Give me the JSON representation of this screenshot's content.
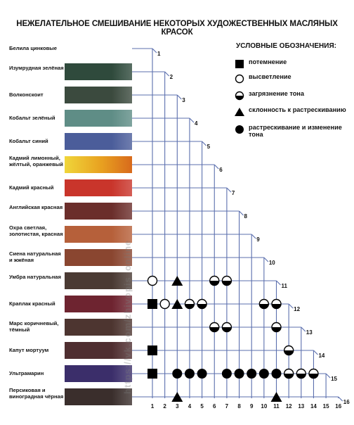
{
  "title": "НЕЖЕЛАТЕЛЬНОЕ СМЕШИВАНИЕ НЕКОТОРЫХ ХУДОЖЕСТВЕННЫХ МАСЛЯНЫХ КРАСОК",
  "legend": {
    "title": "УСЛОВНЫЕ ОБОЗНАЧЕНИЯ:",
    "items": [
      {
        "symbol": "square",
        "label": "потемнение"
      },
      {
        "symbol": "circle-empty",
        "label": "высветление"
      },
      {
        "symbol": "circle-half",
        "label": "загрязнение тона"
      },
      {
        "symbol": "triangle",
        "label": "склонность к растрескиванию"
      },
      {
        "symbol": "circle-full",
        "label": "растрескивание и изменение тона"
      }
    ]
  },
  "paints": [
    {
      "num": "1",
      "name": "Белила цинковые",
      "color": "#ffffff"
    },
    {
      "num": "2",
      "name": "Изумрудная зелёная",
      "color": "#2f4a3c"
    },
    {
      "num": "3",
      "name": "Волконскоит",
      "color": "#3b4a3e"
    },
    {
      "num": "4",
      "name": "Кобальт зелёный",
      "color": "#5f8d86"
    },
    {
      "num": "5",
      "name": "Кобальт синий",
      "color": "#4b5d9a"
    },
    {
      "num": "6",
      "name": "Кадмий лимонный, жёлтый, оранжевый",
      "color": "#e8b62a"
    },
    {
      "num": "7",
      "name": "Кадмий красный",
      "color": "#c9352b"
    },
    {
      "num": "8",
      "name": "Английская красная",
      "color": "#6b2e2b"
    },
    {
      "num": "9",
      "name": "Охра светлая, золотистая, красная",
      "color": "#b6603a"
    },
    {
      "num": "10",
      "name": "Сиена натуральная и жжёная",
      "color": "#8a4630"
    },
    {
      "num": "11",
      "name": "Умбра натуральная",
      "color": "#4a3a33"
    },
    {
      "num": "12",
      "name": "Краплак красный",
      "color": "#6e2430"
    },
    {
      "num": "13",
      "name": "Марс коричневый, тёмный",
      "color": "#4d3530"
    },
    {
      "num": "14",
      "name": "Капут мортуум",
      "color": "#4f2e30"
    },
    {
      "num": "15",
      "name": "Ультрамарин",
      "color": "#3b2e6a"
    },
    {
      "num": "16",
      "name": "Персиковая и виноградная чёрная",
      "color": "#3a2e2c"
    }
  ],
  "mixes": [
    {
      "row": 11,
      "col": 1,
      "symbol": "circle-empty"
    },
    {
      "row": 11,
      "col": 3,
      "symbol": "triangle"
    },
    {
      "row": 11,
      "col": 6,
      "symbol": "circle-half"
    },
    {
      "row": 11,
      "col": 7,
      "symbol": "circle-half"
    },
    {
      "row": 12,
      "col": 1,
      "symbol": "square"
    },
    {
      "row": 12,
      "col": 2,
      "symbol": "circle-empty"
    },
    {
      "row": 12,
      "col": 3,
      "symbol": "triangle"
    },
    {
      "row": 12,
      "col": 4,
      "symbol": "circle-half"
    },
    {
      "row": 12,
      "col": 5,
      "symbol": "circle-half"
    },
    {
      "row": 12,
      "col": 10,
      "symbol": "circle-half"
    },
    {
      "row": 12,
      "col": 11,
      "symbol": "circle-half"
    },
    {
      "row": 13,
      "col": 6,
      "symbol": "circle-half"
    },
    {
      "row": 13,
      "col": 7,
      "symbol": "circle-half"
    },
    {
      "row": 13,
      "col": 11,
      "symbol": "circle-half"
    },
    {
      "row": 14,
      "col": 1,
      "symbol": "square"
    },
    {
      "row": 14,
      "col": 12,
      "symbol": "circle-half"
    },
    {
      "row": 15,
      "col": 1,
      "symbol": "square"
    },
    {
      "row": 15,
      "col": 3,
      "symbol": "circle-full"
    },
    {
      "row": 15,
      "col": 4,
      "symbol": "circle-full"
    },
    {
      "row": 15,
      "col": 5,
      "symbol": "circle-full"
    },
    {
      "row": 15,
      "col": 7,
      "symbol": "circle-full"
    },
    {
      "row": 15,
      "col": 8,
      "symbol": "circle-full"
    },
    {
      "row": 15,
      "col": 9,
      "symbol": "circle-full"
    },
    {
      "row": 15,
      "col": 10,
      "symbol": "circle-full"
    },
    {
      "row": 15,
      "col": 11,
      "symbol": "circle-full"
    },
    {
      "row": 15,
      "col": 12,
      "symbol": "circle-half"
    },
    {
      "row": 15,
      "col": 13,
      "symbol": "circle-half"
    },
    {
      "row": 15,
      "col": 14,
      "symbol": "circle-half"
    },
    {
      "row": 16,
      "col": 3,
      "symbol": "triangle"
    },
    {
      "row": 16,
      "col": 11,
      "symbol": "triangle"
    }
  ],
  "watermark": "https://vk.com/zhivopis_online"
}
